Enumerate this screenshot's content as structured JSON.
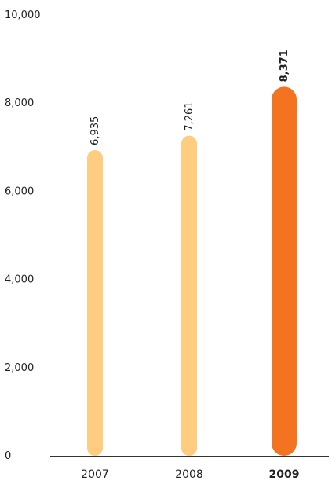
{
  "chart_data": {
    "type": "bar",
    "title": "",
    "xlabel": "",
    "ylabel": "",
    "categories": [
      "2007",
      "2008",
      "2009"
    ],
    "values": [
      6935,
      7261,
      8371
    ],
    "value_labels": [
      "6,935",
      "7,261",
      "8,371"
    ],
    "highlight_index": 2,
    "ylim": [
      0,
      10000
    ],
    "yticks": [
      0,
      2000,
      4000,
      6000,
      8000,
      10000
    ],
    "ytick_labels": [
      "0",
      "2,000",
      "4,000",
      "6,000",
      "8,000",
      "10,000"
    ],
    "grid": false,
    "colors": {
      "default_bar": "#FFCC80",
      "highlight_bar": "#F47321",
      "axis": "#333333"
    }
  }
}
